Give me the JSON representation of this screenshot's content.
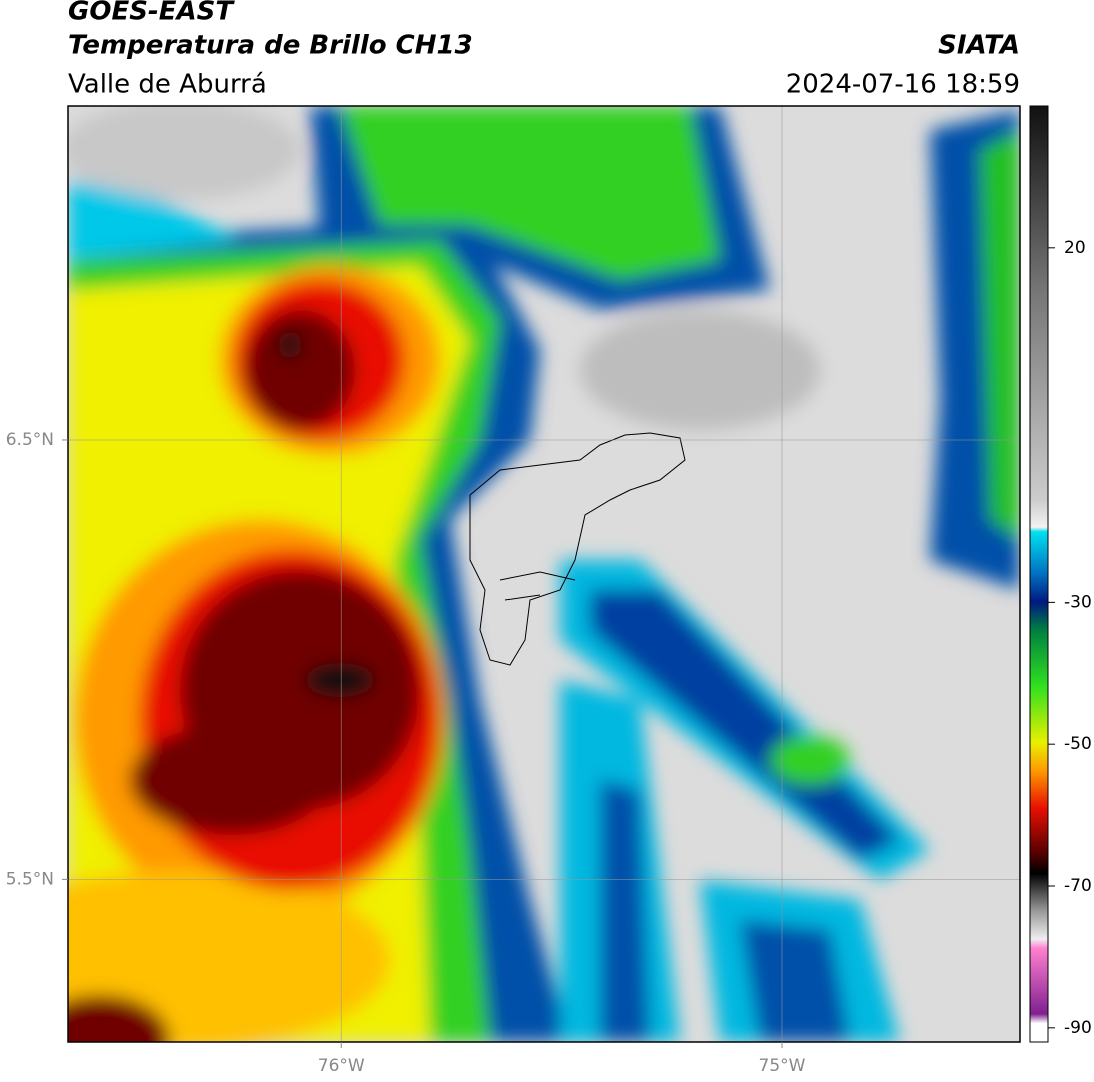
{
  "header": {
    "title": "GOES-EAST",
    "subtitle": "Temperatura de Brillo CH13",
    "region": "Valle de Aburrá",
    "brand": "SIATA",
    "datetime": "2024-07-16 18:59"
  },
  "map": {
    "xlim": [
      -76.62,
      -74.46
    ],
    "ylim": [
      5.13,
      7.26
    ],
    "xticks": [
      {
        "value": -76,
        "label": "76°W"
      },
      {
        "value": -75,
        "label": "75°W"
      }
    ],
    "yticks": [
      {
        "value": 6.5,
        "label": "6.5°N"
      },
      {
        "value": 5.5,
        "label": "5.5°N"
      }
    ],
    "grid": true
  },
  "colorbar": {
    "lim": [
      -92,
      40
    ],
    "ticks": [
      20,
      -30,
      -50,
      -70,
      -90
    ]
  }
}
